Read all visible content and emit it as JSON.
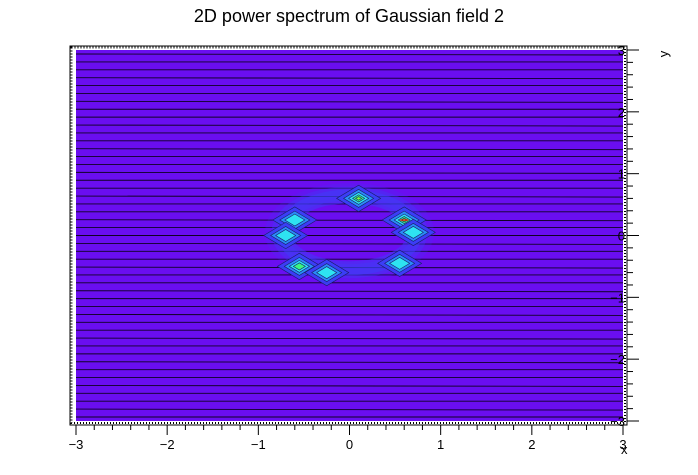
{
  "chart_data": {
    "type": "heatmap",
    "title": "2D power spectrum of Gaussian field 2",
    "xlabel": "x",
    "ylabel": "y",
    "xlim": [
      -3,
      3
    ],
    "ylim": [
      -3,
      3
    ],
    "x_ticks": [
      "−3",
      "−2",
      "−1",
      "0",
      "1",
      "2",
      "3"
    ],
    "y_ticks": [
      "−3",
      "−2",
      "−1",
      "0",
      "1",
      "2",
      "3"
    ],
    "grid": false,
    "background_color": "#6a0ef0",
    "contour_line_color": "#000000",
    "colormap": [
      "#6a0ef0",
      "#3b3ff6",
      "#2a8ff8",
      "#2ee8f0",
      "#3df57a",
      "#7cff3a"
    ],
    "peaks": [
      {
        "x": 0.1,
        "y": 0.6,
        "level": 0.85
      },
      {
        "x": 0.6,
        "y": 0.25,
        "level": 1.0
      },
      {
        "x": 0.7,
        "y": 0.05,
        "level": 0.6
      },
      {
        "x": -0.6,
        "y": 0.25,
        "level": 0.55
      },
      {
        "x": -0.55,
        "y": -0.5,
        "level": 0.8
      },
      {
        "x": -0.25,
        "y": -0.6,
        "level": 0.5
      },
      {
        "x": 0.55,
        "y": -0.45,
        "level": 0.45
      },
      {
        "x": -0.7,
        "y": 0.0,
        "level": 0.5
      }
    ],
    "ring": {
      "cx": 0.0,
      "cy": 0.05,
      "rx": 0.72,
      "ry": 0.58,
      "level": 0.3
    }
  }
}
